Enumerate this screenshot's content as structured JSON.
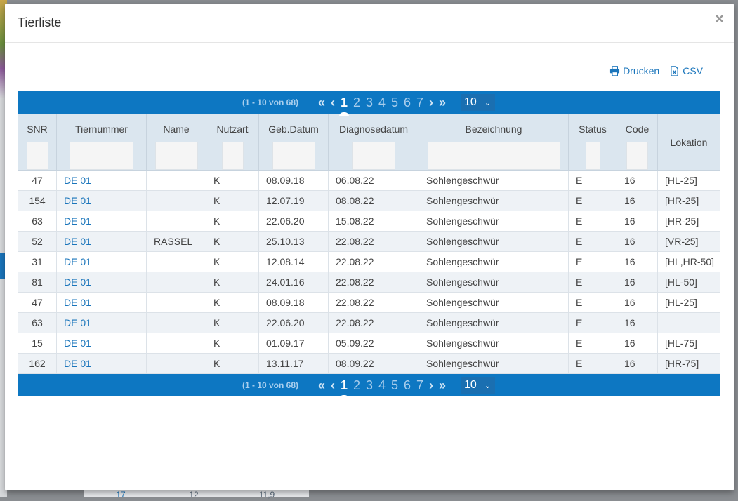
{
  "modal": {
    "title": "Tierliste"
  },
  "toolbar": {
    "print_label": "Drucken",
    "csv_label": "CSV"
  },
  "pagination": {
    "count_text": "(1 - 10 von 68)",
    "pages": [
      "1",
      "2",
      "3",
      "4",
      "5",
      "6",
      "7"
    ],
    "current_page": "1",
    "rows_per_page": "10"
  },
  "table": {
    "headers": {
      "snr": "SNR",
      "tiernummer": "Tiernummer",
      "name": "Name",
      "nutzart": "Nutzart",
      "geb_datum": "Geb.Datum",
      "diagnosedatum": "Diagnosedatum",
      "bezeichnung": "Bezeichnung",
      "status": "Status",
      "code": "Code",
      "lokation": "Lokation"
    },
    "rows": [
      {
        "snr": "47",
        "tiernummer": "DE 01",
        "name": "",
        "nutzart": "K",
        "geb": "08.09.18",
        "diag": "06.08.22",
        "bez": "Sohlengeschwür",
        "status": "E",
        "code": "16",
        "lok": "[HL-25]"
      },
      {
        "snr": "154",
        "tiernummer": "DE 01",
        "name": "",
        "nutzart": "K",
        "geb": "12.07.19",
        "diag": "08.08.22",
        "bez": "Sohlengeschwür",
        "status": "E",
        "code": "16",
        "lok": "[HR-25]"
      },
      {
        "snr": "63",
        "tiernummer": "DE 01",
        "name": "",
        "nutzart": "K",
        "geb": "22.06.20",
        "diag": "15.08.22",
        "bez": "Sohlengeschwür",
        "status": "E",
        "code": "16",
        "lok": "[HR-25]"
      },
      {
        "snr": "52",
        "tiernummer": "DE 01",
        "name": "RASSEL",
        "nutzart": "K",
        "geb": "25.10.13",
        "diag": "22.08.22",
        "bez": "Sohlengeschwür",
        "status": "E",
        "code": "16",
        "lok": "[VR-25]"
      },
      {
        "snr": "31",
        "tiernummer": "DE 01",
        "name": "",
        "nutzart": "K",
        "geb": "12.08.14",
        "diag": "22.08.22",
        "bez": "Sohlengeschwür",
        "status": "E",
        "code": "16",
        "lok": "[HL,HR-50]"
      },
      {
        "snr": "81",
        "tiernummer": "DE 01",
        "name": "",
        "nutzart": "K",
        "geb": "24.01.16",
        "diag": "22.08.22",
        "bez": "Sohlengeschwür",
        "status": "E",
        "code": "16",
        "lok": "[HL-50]"
      },
      {
        "snr": "47",
        "tiernummer": "DE 01",
        "name": "",
        "nutzart": "K",
        "geb": "08.09.18",
        "diag": "22.08.22",
        "bez": "Sohlengeschwür",
        "status": "E",
        "code": "16",
        "lok": "[HL-25]"
      },
      {
        "snr": "63",
        "tiernummer": "DE 01",
        "name": "",
        "nutzart": "K",
        "geb": "22.06.20",
        "diag": "22.08.22",
        "bez": "Sohlengeschwür",
        "status": "E",
        "code": "16",
        "lok": ""
      },
      {
        "snr": "15",
        "tiernummer": "DE 01",
        "name": "",
        "nutzart": "K",
        "geb": "01.09.17",
        "diag": "05.09.22",
        "bez": "Sohlengeschwür",
        "status": "E",
        "code": "16",
        "lok": "[HL-75]"
      },
      {
        "snr": "162",
        "tiernummer": "DE 01",
        "name": "",
        "nutzart": "K",
        "geb": "13.11.17",
        "diag": "08.09.22",
        "bez": "Sohlengeschwür",
        "status": "E",
        "code": "16",
        "lok": "[HR-75]"
      }
    ]
  },
  "background": {
    "bottom_cells": [
      "17",
      "12",
      "11,9"
    ]
  }
}
